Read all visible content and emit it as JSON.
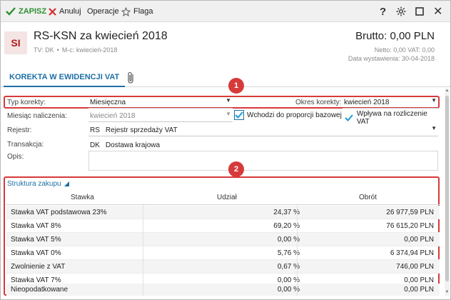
{
  "toolbar": {
    "save_label": "ZAPISZ",
    "cancel_label": "Anuluj",
    "operations_label": "Operacje",
    "flag_label": "Flaga",
    "help_label": "?",
    "close_label": "✕"
  },
  "header": {
    "badge": "SI",
    "title": "RS-KSN za kwiecień 2018",
    "tv": "TV: DK",
    "dot": "•",
    "mc": "M-c: kwiecień-2018",
    "brutto": "Brutto: 0,00 PLN",
    "netto": "Netto: 0,00 VAT: 0,00",
    "date_label": "Data wystawienia: 30-04-2018"
  },
  "tabs": [
    {
      "label": "KOREKTA W EWIDENCJI VAT",
      "active": true
    }
  ],
  "form": {
    "typ_korekty_label": "Typ korekty:",
    "typ_korekty_value": "Miesięczna",
    "okres_korekty_label": "Okres korekty:",
    "okres_korekty_value": "kwiecień 2018",
    "miesiac_label": "Miesiąc naliczenia:",
    "miesiac_value": "kwiecień 2018",
    "wchodzi_label": "Wchodzi do proporcji bazowej",
    "wplywa_label": "Wpływa na rozliczenie VAT",
    "rejestr_label": "Rejestr:",
    "rejestr_code": "RS",
    "rejestr_value": "Rejestr sprzedaży VAT",
    "transakcja_label": "Transakcja:",
    "transakcja_code": "DK",
    "transakcja_value": "Dostawa krajowa",
    "opis_label": "Opis:",
    "opis_value": ""
  },
  "annotations": [
    "1",
    "2"
  ],
  "struktura": {
    "title": "Struktura zakupu",
    "columns": [
      "Stawka",
      "Udział",
      "Obrót"
    ],
    "rows": [
      {
        "stawka": "Stawka VAT podstawowa 23%",
        "udzial": "24,37 %",
        "obrot": "26 977,59 PLN"
      },
      {
        "stawka": "Stawka VAT 8%",
        "udzial": "69,20 %",
        "obrot": "76 615,20 PLN"
      },
      {
        "stawka": "Stawka VAT 5%",
        "udzial": "0,00 %",
        "obrot": "0,00 PLN"
      },
      {
        "stawka": "Stawka VAT 0%",
        "udzial": "5,76 %",
        "obrot": "6 374,94 PLN"
      },
      {
        "stawka": "Zwolnienie z VAT",
        "udzial": "0,67 %",
        "obrot": "746,00 PLN"
      },
      {
        "stawka": "Stawka VAT 7%",
        "udzial": "0,00 %",
        "obrot": "0,00 PLN"
      },
      {
        "stawka": "Nieopodatkowane",
        "udzial": "0,00 %",
        "obrot": "0,00 PLN"
      }
    ]
  },
  "colors": {
    "accent": "#1d6fa5",
    "save_green": "#2f8f2f",
    "annotation_red": "#d63a3a",
    "badge_red": "#b11b1b"
  }
}
